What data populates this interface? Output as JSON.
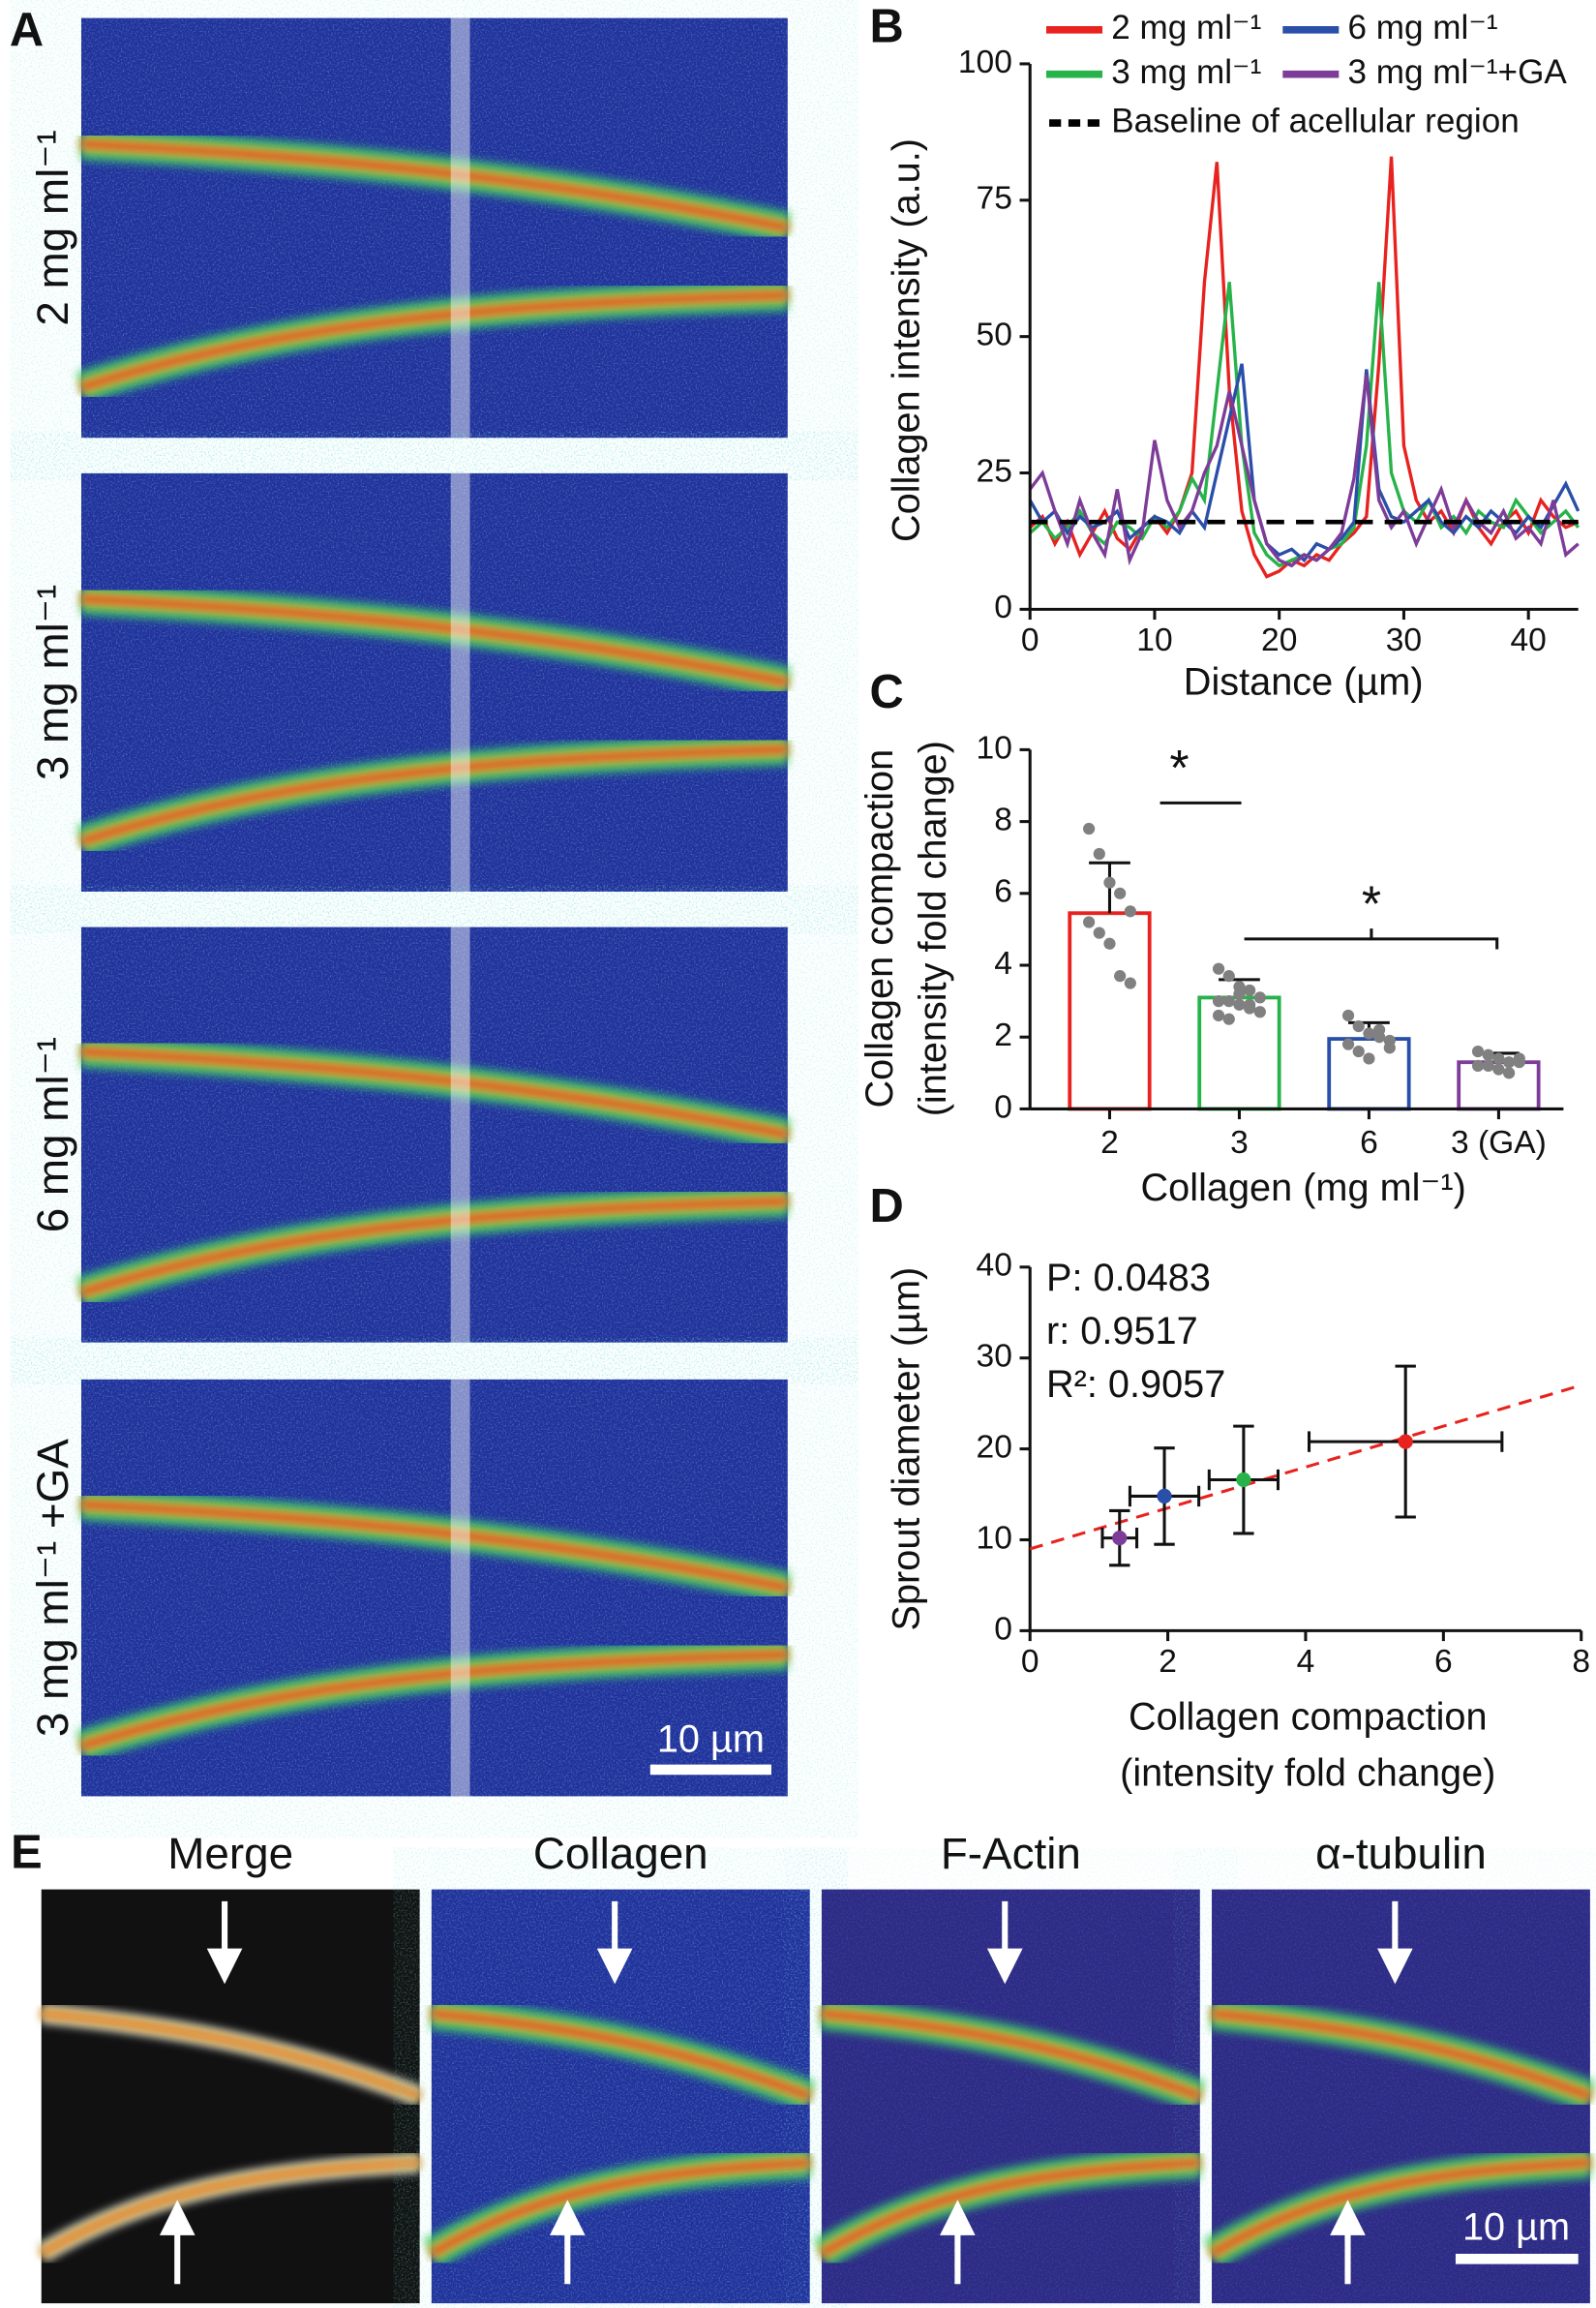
{
  "panels": {
    "labels": [
      "A",
      "B",
      "C",
      "D",
      "E"
    ],
    "a_rows": [
      "2 mg ml⁻¹",
      "3 mg ml⁻¹",
      "6 mg ml⁻¹",
      "3 mg ml⁻¹ +GA"
    ],
    "e_titles": [
      "Merge",
      "Collagen",
      "F-Actin",
      "α-tubulin"
    ],
    "scale_bar": "10 µm"
  },
  "chart_data": [
    {
      "type": "line",
      "xlabel": "Distance (µm)",
      "ylabel": "Collagen intensity (a.u.)",
      "x": [
        0,
        1,
        2,
        3,
        4,
        5,
        6,
        7,
        8,
        9,
        10,
        11,
        12,
        13,
        14,
        15,
        16,
        17,
        18,
        19,
        20,
        21,
        22,
        23,
        24,
        25,
        26,
        27,
        28,
        29,
        30,
        31,
        32,
        33,
        34,
        35,
        36,
        37,
        38,
        39,
        40,
        41,
        42,
        43,
        44
      ],
      "series": [
        {
          "name": "2 mg ml⁻¹",
          "color": "#e8221e",
          "values": [
            15,
            17,
            12,
            16,
            10,
            14,
            18,
            13,
            11,
            15,
            17,
            14,
            18,
            25,
            60,
            82,
            40,
            18,
            10,
            6,
            7,
            9,
            8,
            10,
            9,
            12,
            14,
            17,
            45,
            83,
            30,
            20,
            16,
            18,
            14,
            20,
            15,
            12,
            16,
            18,
            14,
            20,
            17,
            15,
            16
          ]
        },
        {
          "name": "3 mg ml⁻¹",
          "color": "#27b34a",
          "values": [
            14,
            16,
            13,
            15,
            18,
            14,
            12,
            16,
            15,
            13,
            17,
            15,
            18,
            24,
            20,
            40,
            60,
            30,
            14,
            10,
            8,
            9,
            10,
            9,
            11,
            12,
            15,
            30,
            60,
            25,
            18,
            16,
            20,
            15,
            17,
            14,
            18,
            16,
            15,
            20,
            17,
            14,
            16,
            18,
            15
          ]
        },
        {
          "name": "6 mg ml⁻¹",
          "color": "#2a4fa8",
          "values": [
            20,
            16,
            18,
            14,
            17,
            15,
            16,
            18,
            13,
            15,
            17,
            16,
            14,
            18,
            15,
            25,
            35,
            45,
            20,
            12,
            10,
            11,
            9,
            12,
            11,
            13,
            16,
            44,
            22,
            17,
            16,
            18,
            20,
            16,
            14,
            17,
            15,
            18,
            16,
            14,
            17,
            15,
            19,
            23,
            18
          ]
        },
        {
          "name": "3 mg ml⁻¹+GA",
          "color": "#7d3c98",
          "values": [
            22,
            25,
            18,
            12,
            20,
            14,
            10,
            22,
            9,
            14,
            31,
            20,
            15,
            18,
            25,
            30,
            40,
            30,
            20,
            12,
            9,
            8,
            10,
            9,
            11,
            14,
            24,
            43,
            20,
            15,
            18,
            12,
            17,
            22,
            15,
            20,
            16,
            14,
            18,
            13,
            15,
            12,
            20,
            10,
            12
          ]
        }
      ],
      "baseline": {
        "name": "Baseline of acellular region",
        "value": 16,
        "color": "#000000"
      },
      "xlim": [
        0,
        44
      ],
      "ylim": [
        0,
        100
      ],
      "xticks": [
        0,
        10,
        20,
        30,
        40
      ],
      "yticks": [
        0,
        25,
        50,
        75,
        100
      ]
    },
    {
      "type": "bar",
      "xlabel": "Collagen (mg ml⁻¹)",
      "ylabel": [
        "Collagen compaction",
        "(intensity fold change)"
      ],
      "categories": [
        "2",
        "3",
        "6",
        "3 (GA)"
      ],
      "values": [
        5.45,
        3.1,
        1.95,
        1.3
      ],
      "errors": [
        1.4,
        0.5,
        0.45,
        0.25
      ],
      "colors": [
        "#e8221e",
        "#27b34a",
        "#2a4fa8",
        "#7d3c98"
      ],
      "points": [
        [
          7.8,
          7.1,
          6.3,
          6.0,
          5.5,
          5.2,
          4.9,
          4.6,
          3.7,
          3.5
        ],
        [
          3.9,
          3.7,
          3.4,
          3.3,
          3.1,
          3.0,
          3.0,
          2.9,
          2.8,
          2.7,
          2.6,
          2.5,
          3.2,
          2.9
        ],
        [
          2.6,
          2.3,
          2.1,
          2.0,
          1.9,
          1.8,
          1.6,
          1.4,
          2.2,
          1.7
        ],
        [
          1.6,
          1.5,
          1.4,
          1.3,
          1.3,
          1.2,
          1.2,
          1.1,
          1.0,
          1.4
        ]
      ],
      "point_color": "#808080",
      "annotations": [
        "*",
        "*"
      ],
      "ylim": [
        0,
        10
      ],
      "yticks": [
        0,
        2,
        4,
        6,
        8,
        10
      ]
    },
    {
      "type": "scatter",
      "xlabel": [
        "Collagen compaction",
        "(intensity fold change)"
      ],
      "ylabel": "Sprout diameter (µm)",
      "x": [
        5.45,
        3.1,
        1.95,
        1.3
      ],
      "y": [
        20.8,
        16.6,
        14.8,
        10.2
      ],
      "xerr": [
        1.4,
        0.5,
        0.5,
        0.25
      ],
      "yerr": [
        8.3,
        5.9,
        5.3,
        3.0
      ],
      "colors": [
        "#e8221e",
        "#27b34a",
        "#2a4fa8",
        "#7d3c98"
      ],
      "fit": {
        "slope": 2.25,
        "intercept": 9,
        "color": "#e8221e"
      },
      "annotations": [
        "P: 0.0483",
        "r: 0.9517",
        "R²: 0.9057"
      ],
      "xlim": [
        0,
        8
      ],
      "ylim": [
        0,
        40
      ],
      "xticks": [
        0,
        2,
        4,
        6,
        8
      ],
      "yticks": [
        0,
        10,
        20,
        30,
        40
      ]
    }
  ]
}
